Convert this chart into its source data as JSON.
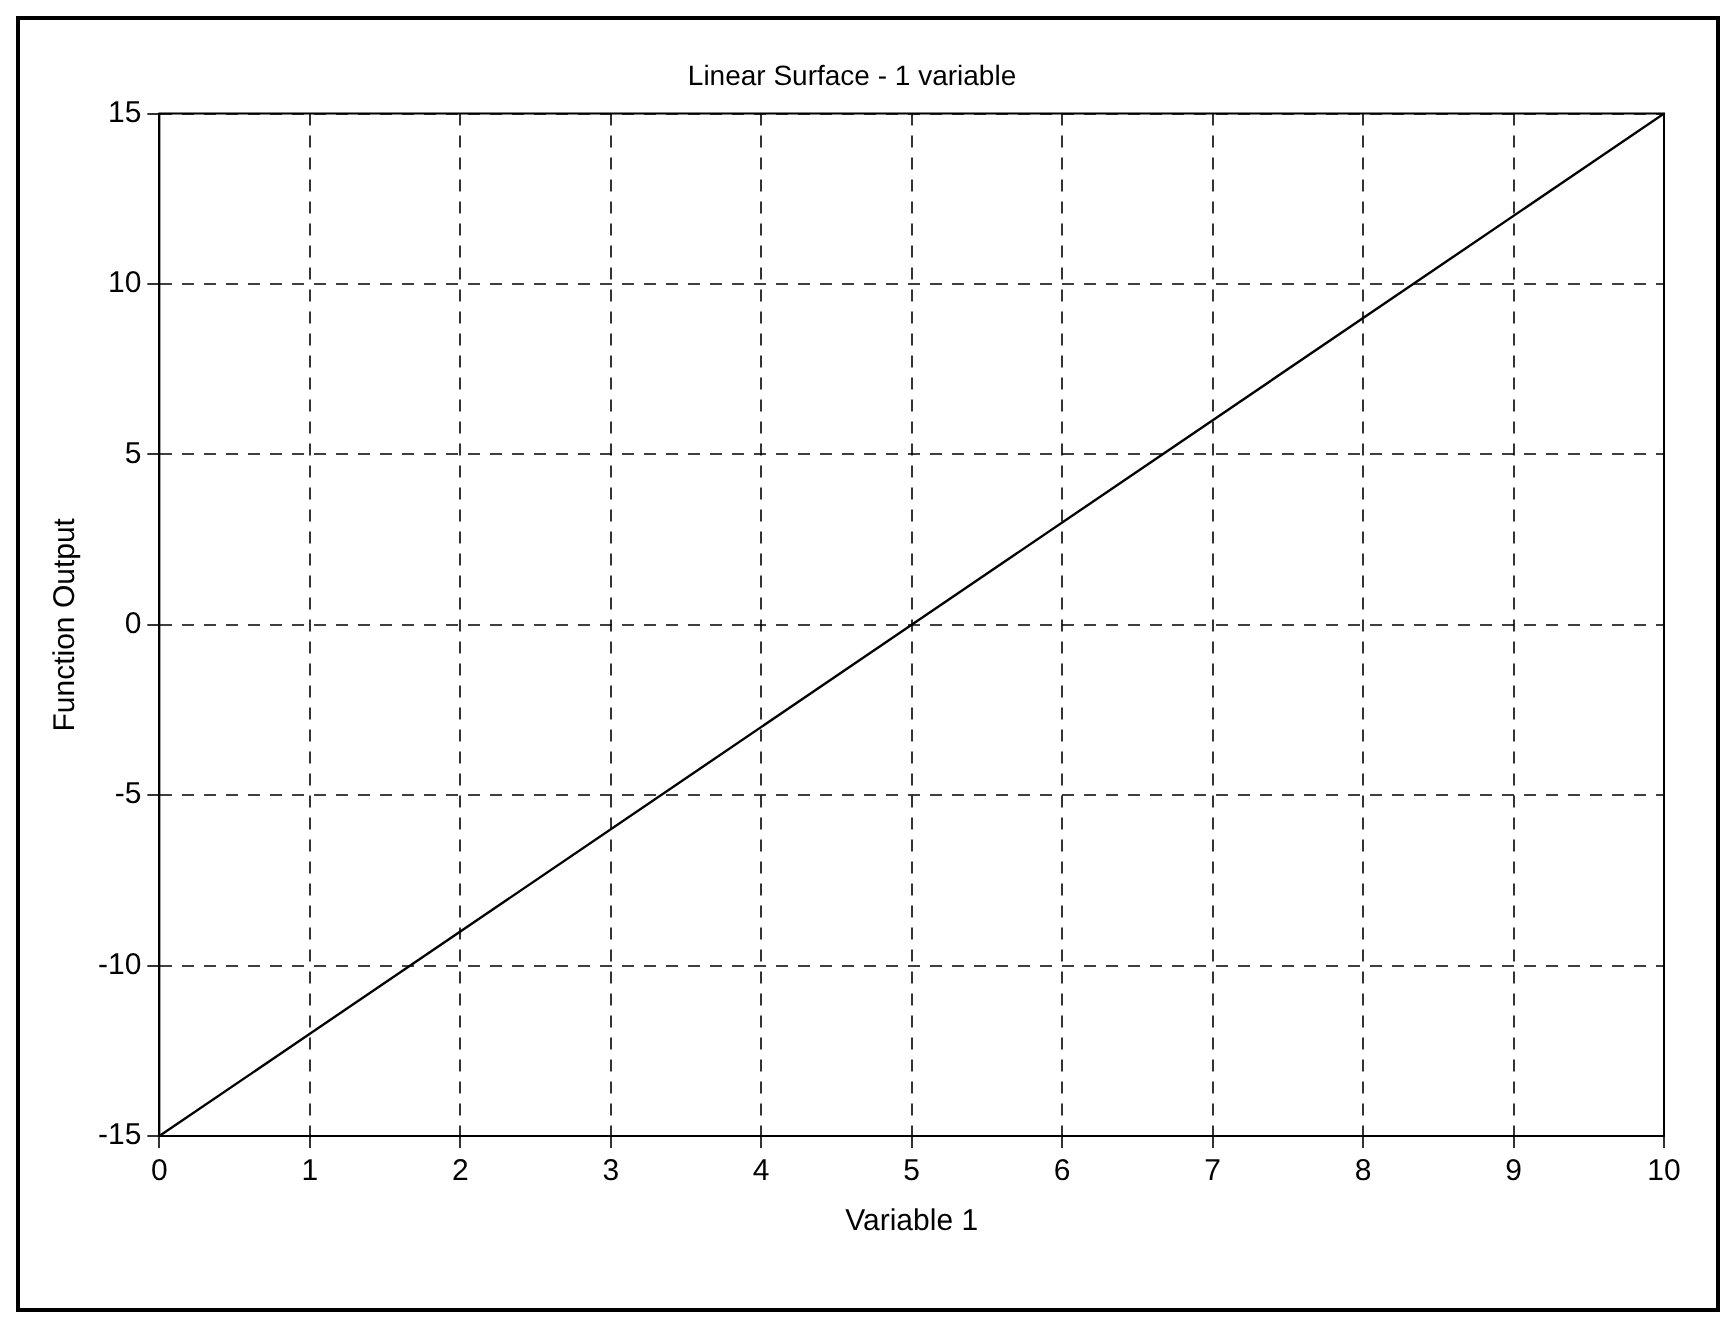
{
  "chart_data": {
    "type": "line",
    "title": "Linear Surface - 1 variable",
    "xlabel": "Variable 1",
    "ylabel": "Function Output",
    "x": [
      0,
      5,
      10
    ],
    "series": [
      {
        "color": "#000000",
        "values": [
          -15,
          0,
          15
        ]
      }
    ],
    "xlim": [
      0,
      10
    ],
    "xticks": [
      0,
      1,
      2,
      3,
      4,
      5,
      6,
      7,
      8,
      9,
      10
    ],
    "ylim": [
      -15,
      15
    ],
    "yticks": [
      -15,
      -10,
      -5,
      0,
      5,
      10,
      15
    ],
    "grid": true,
    "legend": false,
    "marker": "none",
    "line_style": "solid"
  }
}
